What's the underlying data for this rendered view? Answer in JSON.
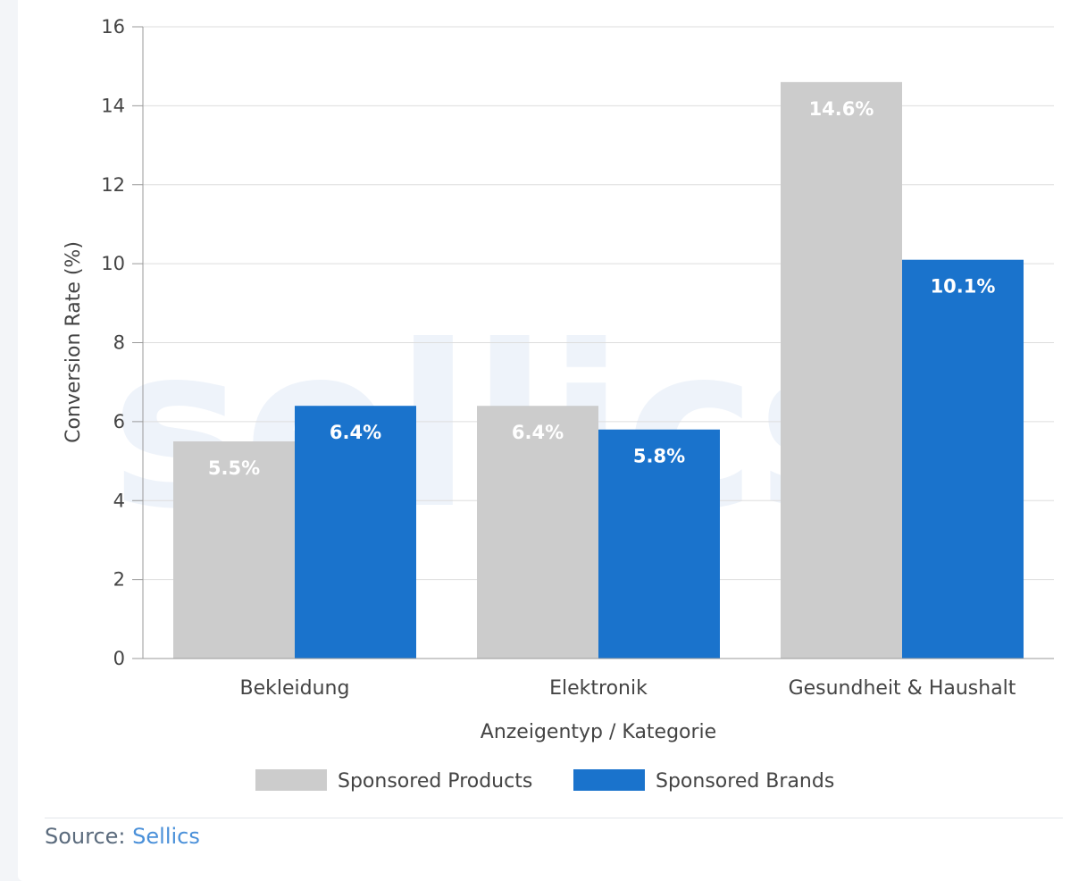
{
  "chart_data": {
    "type": "bar",
    "categories": [
      "Bekleidung",
      "Elektronik",
      "Gesundheit & Haushalt"
    ],
    "series": [
      {
        "name": "Sponsored Products",
        "color": "#cccccc",
        "values": [
          5.5,
          6.4,
          14.6
        ],
        "labels": [
          "5.5%",
          "6.4%",
          "14.6%"
        ]
      },
      {
        "name": "Sponsored Brands",
        "color": "#1a73cc",
        "values": [
          6.4,
          5.8,
          10.1
        ],
        "labels": [
          "6.4%",
          "5.8%",
          "10.1%"
        ]
      }
    ],
    "xlabel": "Anzeigentyp / Kategorie",
    "ylabel": "Conversion Rate (%)",
    "ylim": [
      0,
      16
    ],
    "yticks": [
      0,
      2,
      4,
      6,
      8,
      10,
      12,
      14,
      16
    ],
    "grid": true,
    "legend": "bottom-center",
    "watermark": "sellics"
  },
  "source": {
    "prefix": "Source:",
    "name": "Sellics"
  }
}
